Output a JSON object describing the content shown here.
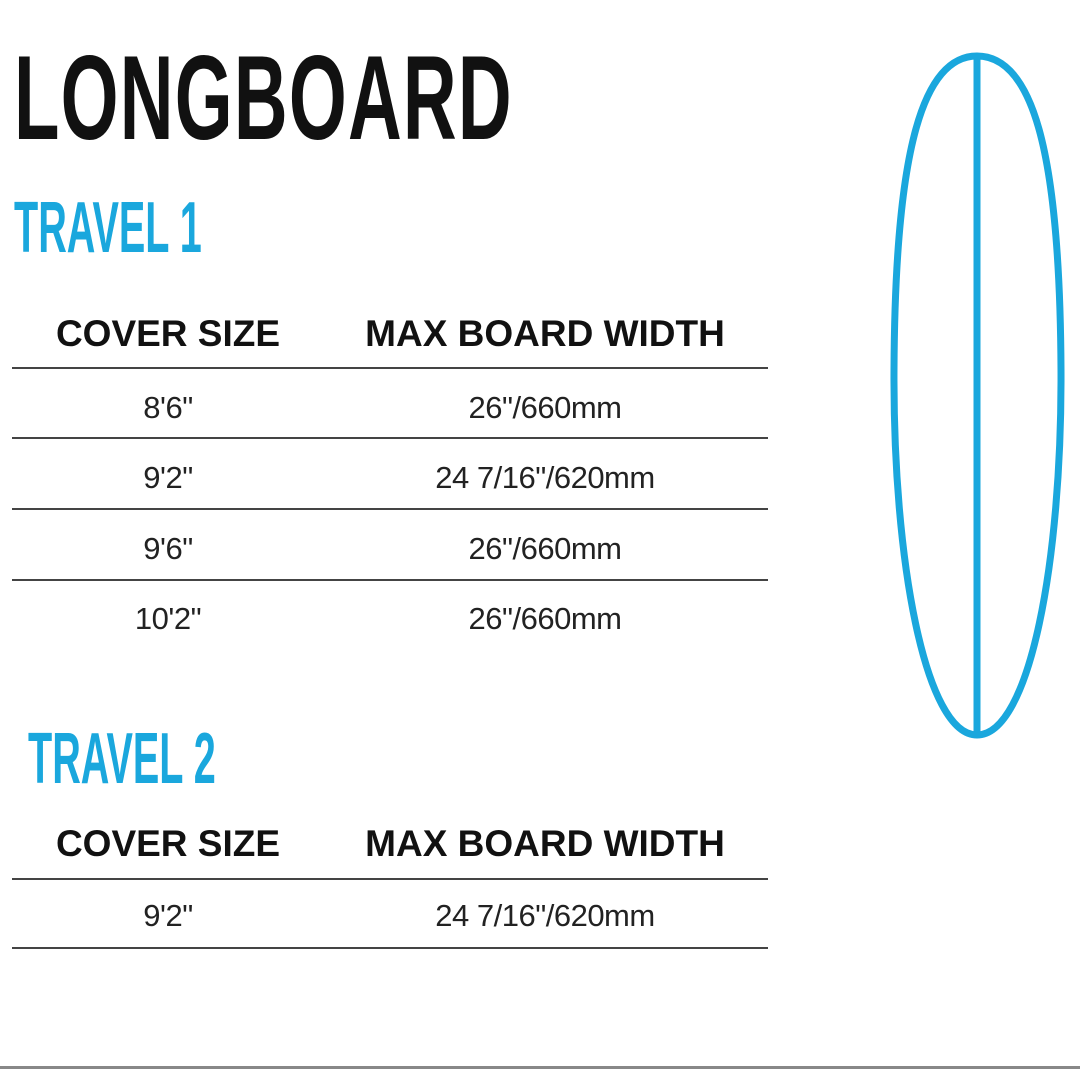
{
  "title": "LONGBOARD",
  "accent_color": "#1aa7dd",
  "sections": [
    {
      "title": "TRAVEL 1",
      "headers": [
        "COVER SIZE",
        "MAX BOARD WIDTH"
      ],
      "rows": [
        [
          "8'6\"",
          "26\"/660mm"
        ],
        [
          "9'2\"",
          "24 7/16\"/620mm"
        ],
        [
          "9'6\"",
          "26\"/660mm"
        ],
        [
          "10'2\"",
          "26\"/660mm"
        ]
      ]
    },
    {
      "title": "TRAVEL 2",
      "headers": [
        "COVER SIZE",
        "MAX BOARD WIDTH"
      ],
      "rows": [
        [
          "9'2\"",
          "24 7/16\"/620mm"
        ]
      ]
    }
  ],
  "illustration": "surfboard-outline-icon"
}
